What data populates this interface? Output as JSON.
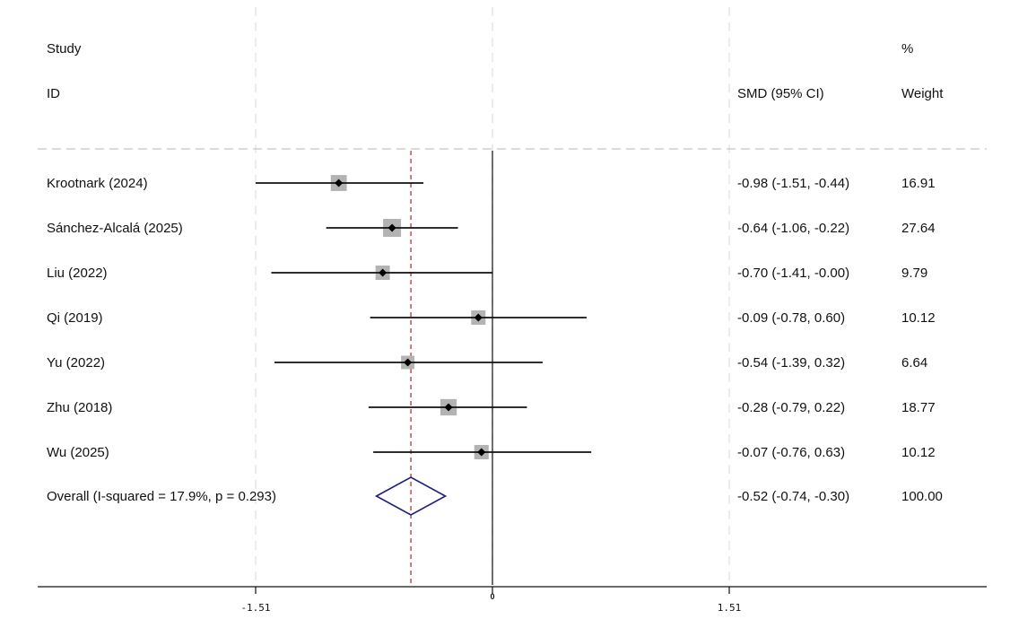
{
  "headers": {
    "study_line1": "Study",
    "study_line2": "ID",
    "effect_label": "SMD (95% CI)",
    "weight_line1": "%",
    "weight_line2": "Weight"
  },
  "chart_data": {
    "type": "forest",
    "measure": "SMD",
    "studies": [
      {
        "label": "Krootnark (2024)",
        "smd": -0.98,
        "lower": -1.51,
        "upper": -0.44,
        "ci_text": "-0.98 (-1.51, -0.44)",
        "weight": 16.91,
        "weight_text": "16.91"
      },
      {
        "label": "Sánchez-Alcalá (2025)",
        "smd": -0.64,
        "lower": -1.06,
        "upper": -0.22,
        "ci_text": "-0.64 (-1.06, -0.22)",
        "weight": 27.64,
        "weight_text": "27.64"
      },
      {
        "label": "Liu (2022)",
        "smd": -0.7,
        "lower": -1.41,
        "upper": -0.0,
        "ci_text": "-0.70 (-1.41, -0.00)",
        "weight": 9.79,
        "weight_text": "9.79"
      },
      {
        "label": "Qi (2019)",
        "smd": -0.09,
        "lower": -0.78,
        "upper": 0.6,
        "ci_text": "-0.09 (-0.78, 0.60)",
        "weight": 10.12,
        "weight_text": "10.12"
      },
      {
        "label": "Yu (2022)",
        "smd": -0.54,
        "lower": -1.39,
        "upper": 0.32,
        "ci_text": "-0.54 (-1.39, 0.32)",
        "weight": 6.64,
        "weight_text": "6.64"
      },
      {
        "label": "Zhu (2018)",
        "smd": -0.28,
        "lower": -0.79,
        "upper": 0.22,
        "ci_text": "-0.28 (-0.79, 0.22)",
        "weight": 18.77,
        "weight_text": "18.77"
      },
      {
        "label": "Wu (2025)",
        "smd": -0.07,
        "lower": -0.76,
        "upper": 0.63,
        "ci_text": "-0.07 (-0.76, 0.63)",
        "weight": 10.12,
        "weight_text": "10.12"
      }
    ],
    "overall": {
      "label": "Overall  (I-squared = 17.9%, p = 0.293)",
      "smd": -0.52,
      "lower": -0.74,
      "upper": -0.3,
      "ci_text": "-0.52 (-0.74, -0.30)",
      "weight": 100.0,
      "weight_text": "100.00"
    },
    "x_ticks": [
      -1.51,
      0,
      1.51
    ],
    "x_tick_labels": [
      "-1.51",
      "0",
      "1.51"
    ],
    "null_line": 0,
    "colors": {
      "text": "#111111",
      "ci_line": "#111111",
      "weight_box": "#b3b3b3",
      "point": "#000000",
      "diamond": "#1f1f7a",
      "overall_line": "#b22222",
      "grid": "#e3e3e3",
      "separator": "#cfcfcf"
    }
  }
}
